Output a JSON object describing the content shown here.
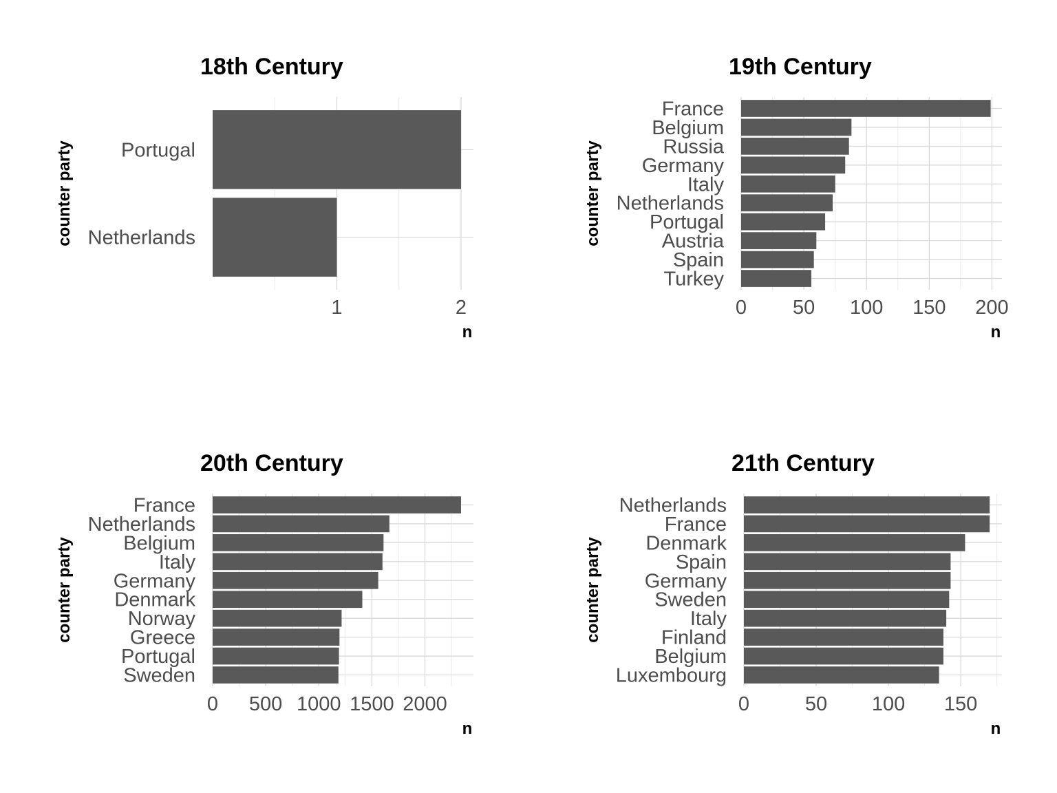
{
  "chart_data": [
    {
      "type": "bar",
      "orientation": "horizontal",
      "title": "18th Century",
      "xlabel": "n",
      "ylabel": "counter party",
      "categories": [
        "Portugal",
        "Netherlands"
      ],
      "values": [
        2,
        1
      ],
      "xlim": [
        0,
        2.1
      ],
      "xticks": [
        1,
        2
      ],
      "xtick_labels": [
        "1",
        "2"
      ],
      "grid": true
    },
    {
      "type": "bar",
      "orientation": "horizontal",
      "title": "19th Century",
      "xlabel": "n",
      "ylabel": "counter party",
      "categories": [
        "France",
        "Belgium",
        "Russia",
        "Germany",
        "Italy",
        "Netherlands",
        "Portugal",
        "Austria",
        "Spain",
        "Turkey"
      ],
      "values": [
        199,
        88,
        86,
        83,
        75,
        73,
        67,
        60,
        58,
        56
      ],
      "xlim": [
        0,
        208
      ],
      "xticks": [
        0,
        50,
        100,
        150,
        200
      ],
      "xtick_labels": [
        "0",
        "50",
        "100",
        "150",
        "200"
      ],
      "grid": true
    },
    {
      "type": "bar",
      "orientation": "horizontal",
      "title": "20th Century",
      "xlabel": "n",
      "ylabel": "counter party",
      "categories": [
        "France",
        "Netherlands",
        "Belgium",
        "Italy",
        "Germany",
        "Denmark",
        "Norway",
        "Greece",
        "Portugal",
        "Sweden"
      ],
      "values": [
        2340,
        1665,
        1610,
        1600,
        1560,
        1410,
        1215,
        1195,
        1190,
        1185
      ],
      "xlim": [
        0,
        2457
      ],
      "xticks": [
        0,
        500,
        1000,
        1500,
        2000
      ],
      "xtick_labels": [
        "0",
        "500",
        "1000",
        "1500",
        "2000"
      ],
      "grid": true
    },
    {
      "type": "bar",
      "orientation": "horizontal",
      "title": "21th Century",
      "xlabel": "n",
      "ylabel": "counter party",
      "categories": [
        "Netherlands",
        "France",
        "Denmark",
        "Spain",
        "Germany",
        "Sweden",
        "Italy",
        "Finland",
        "Belgium",
        "Luxembourg"
      ],
      "values": [
        170,
        170,
        153,
        143,
        143,
        142,
        140,
        138,
        138,
        135
      ],
      "xlim": [
        0,
        178.5
      ],
      "xticks": [
        0,
        50,
        100,
        150
      ],
      "xtick_labels": [
        "0",
        "50",
        "100",
        "150"
      ],
      "grid": true
    }
  ]
}
